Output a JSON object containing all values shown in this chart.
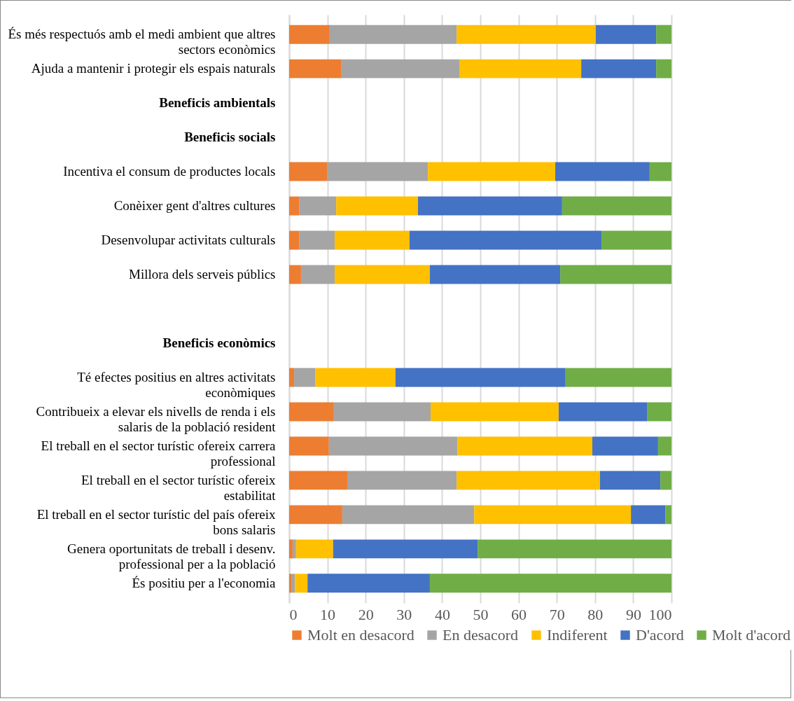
{
  "chart_data": {
    "type": "bar",
    "orientation": "horizontal",
    "stacked": true,
    "categories": [
      "És més respectuós amb el medi ambient que altres sectors econòmics",
      "Ajuda a mantenir i protegir els espais naturals",
      "Beneficis ambientals",
      "Beneficis socials",
      "Incentiva el consum de productes locals",
      "Conèixer gent d'altres cultures",
      "Desenvolupar activitats culturals",
      "Millora dels serveis públics",
      null,
      "Beneficis econòmics",
      "Té efectes positius en altres activitats econòmiques",
      "Contribueix a elevar els nivells de renda i els salaris de la població resident",
      "El treball en el sector turístic ofereix carrera professional",
      "El treball en el sector turístic ofereix estabilitat",
      "El treball en el sector turístic del país ofereix bons salaris",
      "Genera oportunitats de treball i desenv. professional per a la població",
      "És positiu per a l'economia"
    ],
    "series": [
      {
        "name": "Molt en desacord",
        "color": "#ed7d31",
        "values": [
          10.6,
          13.7,
          null,
          null,
          9.9,
          2.7,
          2.7,
          3.1,
          null,
          null,
          1.3,
          11.7,
          10.4,
          15.2,
          13.9,
          0.9,
          0.7
        ]
      },
      {
        "name": "En desacord",
        "color": "#a5a5a5",
        "values": [
          33.2,
          30.8,
          null,
          null,
          26.4,
          9.6,
          9.2,
          8.8,
          null,
          null,
          5.5,
          25.3,
          33.6,
          28.6,
          34.5,
          0.9,
          0.8
        ]
      },
      {
        "name": "Indiferent",
        "color": "#ffc000",
        "values": [
          36.4,
          31.9,
          null,
          null,
          33.3,
          21.4,
          19.6,
          24.9,
          null,
          null,
          21.0,
          33.5,
          35.3,
          37.5,
          41.0,
          9.7,
          3.3
        ]
      },
      {
        "name": "D'acord",
        "color": "#4472c4",
        "values": [
          15.8,
          19.6,
          null,
          null,
          24.7,
          37.7,
          50.2,
          34.1,
          null,
          null,
          44.5,
          23.1,
          17.2,
          15.8,
          9.0,
          37.8,
          32.0
        ]
      },
      {
        "name": "Molt d'acord",
        "color": "#70ad47",
        "values": [
          4.0,
          4.0,
          null,
          null,
          5.7,
          28.6,
          18.3,
          29.1,
          null,
          null,
          27.7,
          6.4,
          3.5,
          2.9,
          1.6,
          50.7,
          63.2
        ]
      }
    ],
    "xlim": [
      0,
      100
    ],
    "xticks": [
      0,
      10,
      20,
      30,
      40,
      50,
      60,
      70,
      80,
      90,
      100
    ],
    "grid": "x",
    "legend": "bottom"
  }
}
